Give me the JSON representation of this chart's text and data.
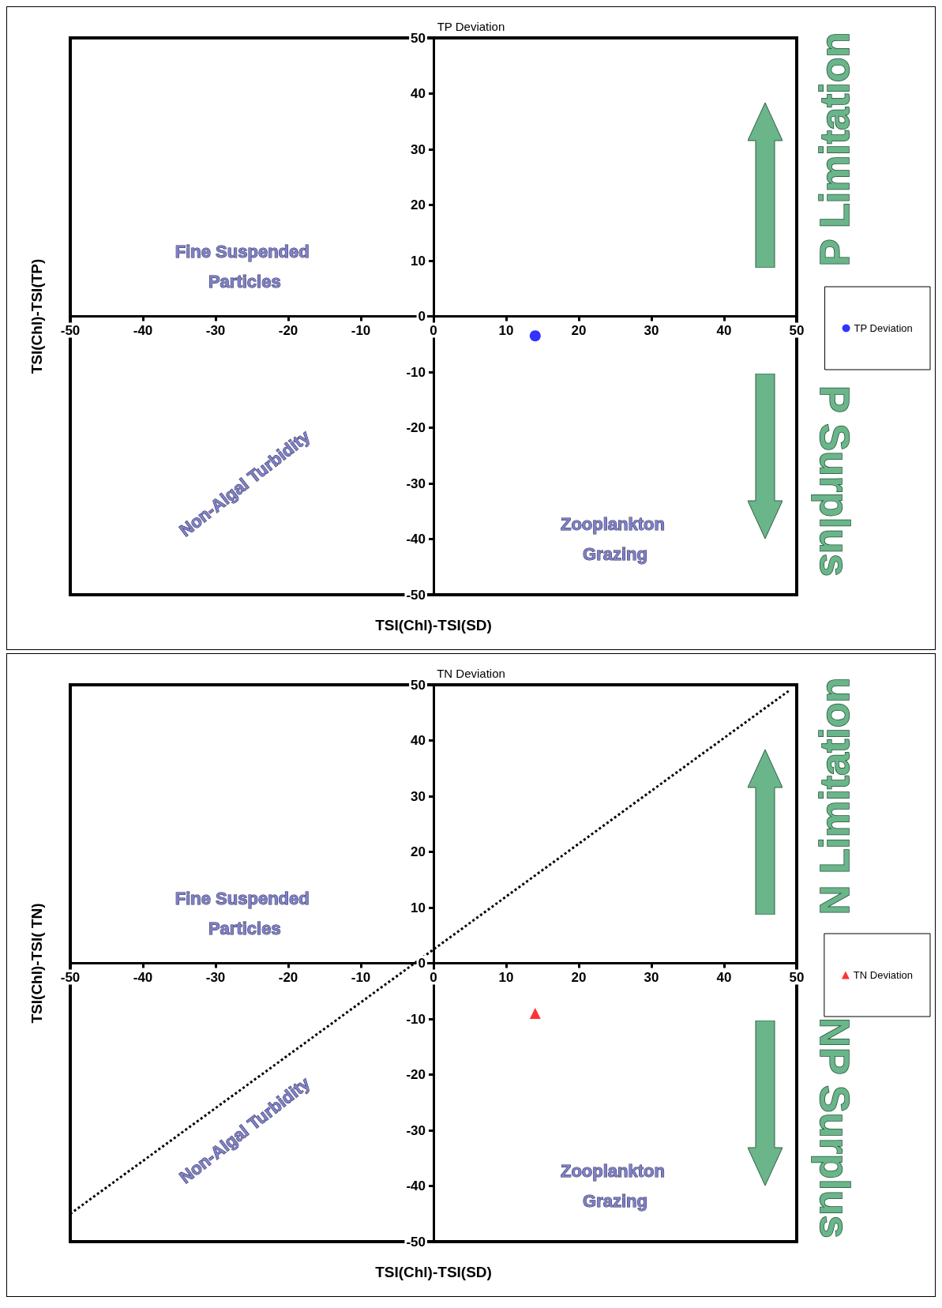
{
  "chart_data": [
    {
      "type": "scatter",
      "title": "TP Deviation",
      "xlabel": "TSI(Chl)-TSI(SD)",
      "ylabel": "TSI(Chl)-TSI(TP)",
      "marker": "circle",
      "legend": "right",
      "xlim": [
        -50,
        50
      ],
      "ylim": [
        -50,
        50
      ],
      "xticks": [
        -50,
        -40,
        -30,
        -20,
        -10,
        0,
        10,
        20,
        30,
        40,
        50
      ],
      "yticks": [
        -50,
        -40,
        -30,
        -20,
        -10,
        0,
        10,
        20,
        30,
        40,
        50
      ],
      "series": [
        {
          "name": "TP Deviation",
          "color": "#0000ff",
          "x": [
            14
          ],
          "values": [
            -3.5
          ]
        }
      ],
      "annotations": [
        "Fine Suspended Particles",
        "Non-Algal Turbidity",
        "Zooplankton Grazing",
        "P Limitation",
        "P Surplus"
      ]
    },
    {
      "type": "scatter",
      "title": "TN Deviation",
      "xlabel": "TSI(Chl)-TSI(SD)",
      "ylabel": "TSI(Chl)-TSI( TN)",
      "marker": "triangle",
      "legend": "right",
      "xlim": [
        -50,
        50
      ],
      "ylim": [
        -50,
        50
      ],
      "xticks": [
        -50,
        -40,
        -30,
        -20,
        -10,
        0,
        10,
        20,
        30,
        40,
        50
      ],
      "yticks": [
        -50,
        -40,
        -30,
        -20,
        -10,
        0,
        10,
        20,
        30,
        40,
        50
      ],
      "series": [
        {
          "name": "TN Deviation",
          "color": "#ff0000",
          "x": [
            14
          ],
          "values": [
            -9
          ]
        },
        {
          "type": "line",
          "color": "#000000",
          "line_style": "dotted",
          "marker": "none",
          "x": [
            -50,
            49
          ],
          "values": [
            -45,
            49
          ]
        }
      ],
      "annotations": [
        "Fine Suspended Particles",
        "Non-Algal Turbidity",
        "Zooplankton Grazing",
        "N Limitation",
        "NP Surplus"
      ]
    }
  ]
}
